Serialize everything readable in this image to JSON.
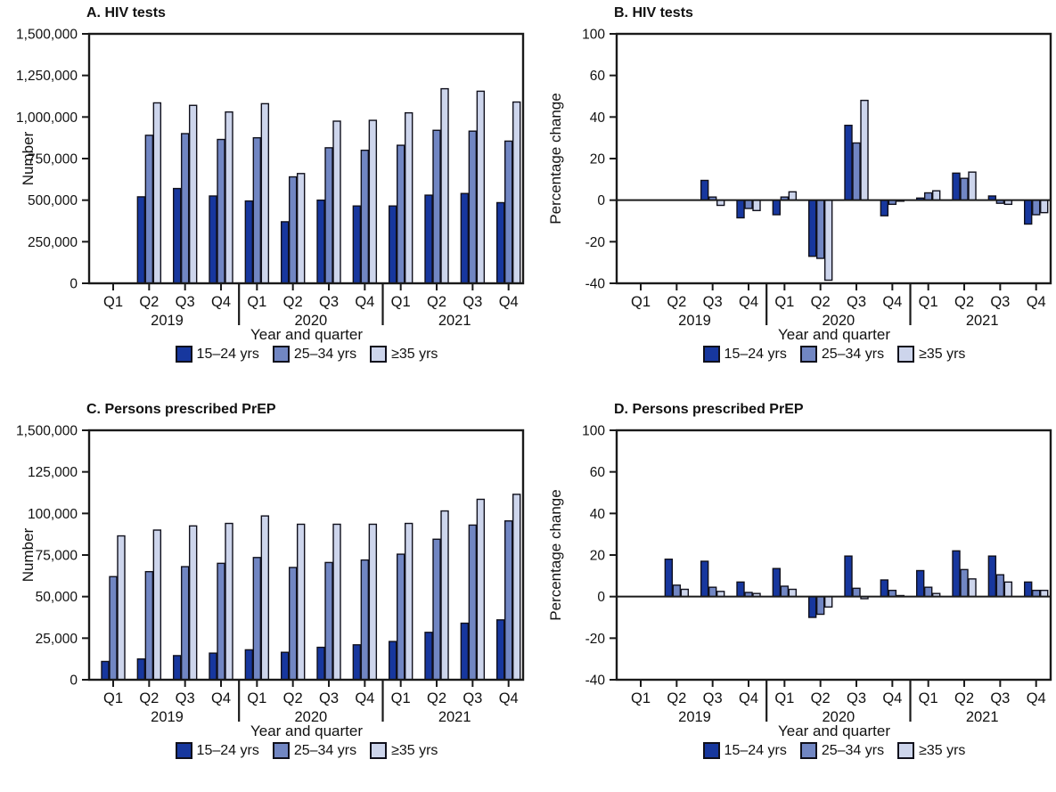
{
  "page": {
    "background": "#ffffff"
  },
  "colors": {
    "dark_blue": "#17379E",
    "medium_blue": "#7186C3",
    "light_blue": "#CDD5EC",
    "outline": "#10101c",
    "axis": "#1a1a1a"
  },
  "legend": {
    "items": [
      {
        "label": "15–24 yrs",
        "color_key": "dark_blue"
      },
      {
        "label": "25–34 yrs",
        "color_key": "medium_blue"
      },
      {
        "label": "≥35 yrs",
        "color_key": "light_blue"
      }
    ]
  },
  "chart_data": [
    {
      "id": "A",
      "type": "bar",
      "title": "A. HIV tests",
      "ylabel": "Number",
      "xlabel": "Year and quarter",
      "legend_position": "bottom",
      "grid": false,
      "ytick_labels": [
        "1,500,000",
        "1,250,000",
        "1,000,000",
        "750,000",
        "500,000",
        "250,000",
        "0"
      ],
      "tick_unit": 250000,
      "zero_tick_index": 6,
      "categories": [
        "Q1",
        "Q2",
        "Q3",
        "Q4",
        "Q1",
        "Q2",
        "Q3",
        "Q4",
        "Q1",
        "Q2",
        "Q3",
        "Q4"
      ],
      "year_groups": [
        {
          "label": "2019",
          "quarters": 4
        },
        {
          "label": "2020",
          "quarters": 4
        },
        {
          "label": "2021",
          "quarters": 4
        }
      ],
      "series": [
        {
          "name": "15–24 yrs",
          "values": [
            null,
            520000,
            570000,
            525000,
            495000,
            370000,
            500000,
            465000,
            465000,
            530000,
            540000,
            485000
          ]
        },
        {
          "name": "25–34 yrs",
          "values": [
            null,
            890000,
            900000,
            865000,
            875000,
            640000,
            815000,
            800000,
            830000,
            920000,
            915000,
            855000
          ]
        },
        {
          "name": "≥35 yrs",
          "values": [
            null,
            1085000,
            1070000,
            1030000,
            1080000,
            660000,
            975000,
            980000,
            1025000,
            1170000,
            1155000,
            1090000
          ]
        }
      ]
    },
    {
      "id": "B",
      "type": "bar",
      "title": "B. HIV tests",
      "ylabel": "Percentage change",
      "xlabel": "Year and quarter",
      "legend_position": "bottom",
      "grid": false,
      "ytick_labels": [
        "100",
        "60",
        "40",
        "20",
        "0",
        "-20",
        "-40"
      ],
      "tick_unit": 20,
      "zero_tick_index": 4,
      "categories": [
        "Q1",
        "Q2",
        "Q3",
        "Q4",
        "Q1",
        "Q2",
        "Q3",
        "Q4",
        "Q1",
        "Q2",
        "Q3",
        "Q4"
      ],
      "year_groups": [
        {
          "label": "2019",
          "quarters": 4
        },
        {
          "label": "2020",
          "quarters": 4
        },
        {
          "label": "2021",
          "quarters": 4
        }
      ],
      "series": [
        {
          "name": "15–24 yrs",
          "values": [
            null,
            null,
            9.5,
            -8.5,
            -7,
            -27,
            36,
            -7.5,
            1,
            13,
            2,
            -11.5
          ]
        },
        {
          "name": "25–34 yrs",
          "values": [
            null,
            null,
            1.5,
            -4,
            1.5,
            -28,
            27.5,
            -2,
            3.5,
            10.5,
            -1.5,
            -7
          ]
        },
        {
          "name": "≥35 yrs",
          "values": [
            null,
            null,
            -2.5,
            -5,
            4,
            -38.5,
            48,
            -0.5,
            4.5,
            13.5,
            -2,
            -6
          ]
        }
      ]
    },
    {
      "id": "C",
      "type": "bar",
      "title": "C. Persons prescribed PrEP",
      "ylabel": "Number",
      "xlabel": "Year and quarter",
      "legend_position": "bottom",
      "grid": false,
      "ytick_labels": [
        "1,500,000",
        "125,000",
        "100,000",
        "75,000",
        "50,000",
        "25,000",
        "0"
      ],
      "tick_unit": 25000,
      "zero_tick_index": 6,
      "categories": [
        "Q1",
        "Q2",
        "Q3",
        "Q4",
        "Q1",
        "Q2",
        "Q3",
        "Q4",
        "Q1",
        "Q2",
        "Q3",
        "Q4"
      ],
      "year_groups": [
        {
          "label": "2019",
          "quarters": 4
        },
        {
          "label": "2020",
          "quarters": 4
        },
        {
          "label": "2021",
          "quarters": 4
        }
      ],
      "series": [
        {
          "name": "15–24 yrs",
          "values": [
            11000,
            12500,
            14500,
            16000,
            18000,
            16500,
            19500,
            21000,
            23000,
            28500,
            34000,
            36000
          ]
        },
        {
          "name": "25–34 yrs",
          "values": [
            62000,
            65000,
            68000,
            70000,
            73500,
            67500,
            70500,
            72000,
            75500,
            84500,
            93000,
            95500
          ]
        },
        {
          "name": "≥35 yrs",
          "values": [
            86500,
            90000,
            92500,
            94000,
            98500,
            93500,
            93500,
            93500,
            94000,
            101500,
            108500,
            111500
          ]
        }
      ]
    },
    {
      "id": "D",
      "type": "bar",
      "title": "D. Persons prescribed PrEP",
      "ylabel": "Percentage change",
      "xlabel": "Year and quarter",
      "legend_position": "bottom",
      "grid": false,
      "ytick_labels": [
        "100",
        "60",
        "40",
        "20",
        "0",
        "-20",
        "-40"
      ],
      "tick_unit": 20,
      "zero_tick_index": 4,
      "categories": [
        "Q1",
        "Q2",
        "Q3",
        "Q4",
        "Q1",
        "Q2",
        "Q3",
        "Q4",
        "Q1",
        "Q2",
        "Q3",
        "Q4"
      ],
      "year_groups": [
        {
          "label": "2019",
          "quarters": 4
        },
        {
          "label": "2020",
          "quarters": 4
        },
        {
          "label": "2021",
          "quarters": 4
        }
      ],
      "series": [
        {
          "name": "15–24 yrs",
          "values": [
            null,
            18,
            17,
            7,
            13.5,
            -10,
            19.5,
            8,
            12.5,
            22,
            19.5,
            7
          ]
        },
        {
          "name": "25–34 yrs",
          "values": [
            null,
            5.5,
            4.5,
            2,
            5,
            -8.5,
            4,
            3,
            4.5,
            13,
            10.5,
            3
          ]
        },
        {
          "name": "≥35 yrs",
          "values": [
            null,
            3.5,
            2.5,
            1.5,
            3.5,
            -5,
            -1,
            0.5,
            1.5,
            8.5,
            7,
            3
          ]
        }
      ]
    }
  ]
}
